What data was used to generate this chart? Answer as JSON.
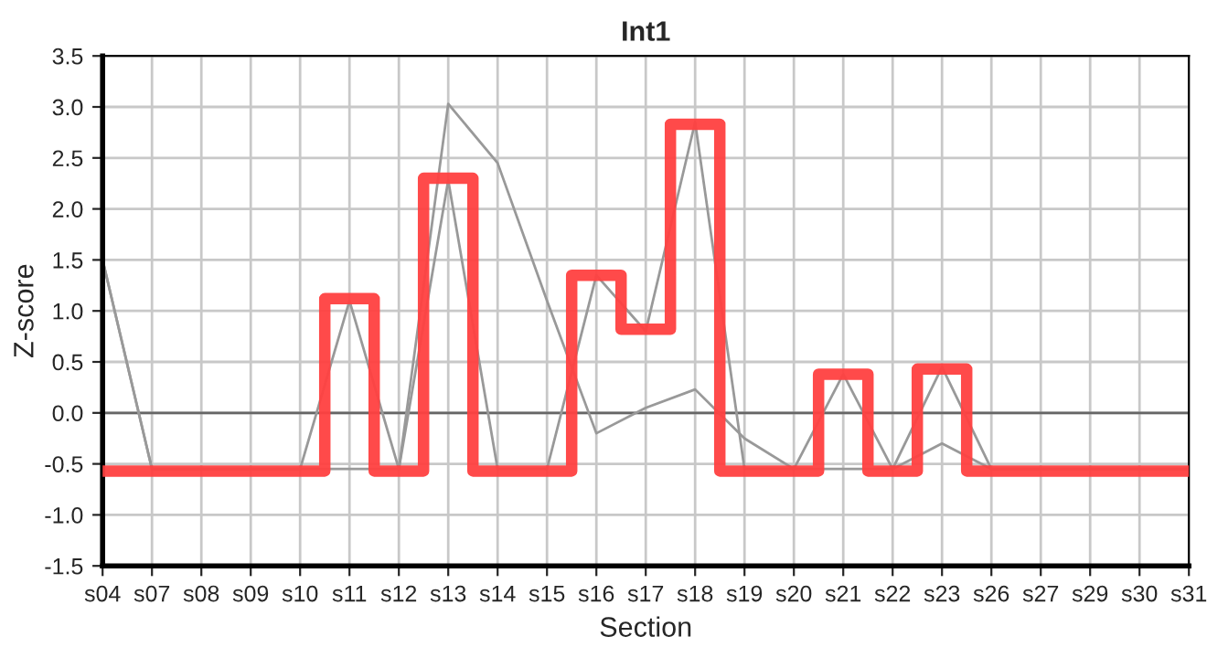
{
  "chart_data": {
    "type": "step",
    "title": "Int1",
    "xlabel": "Section",
    "ylabel": "Z-score",
    "categories": [
      "s04",
      "s07",
      "s08",
      "s09",
      "s10",
      "s11",
      "s12",
      "s13",
      "s14",
      "s15",
      "s16",
      "s17",
      "s18",
      "s19",
      "s20",
      "s21",
      "s22",
      "s23",
      "s26",
      "s27",
      "s29",
      "s30",
      "s31"
    ],
    "series": [
      {
        "type": "line",
        "color": "#999999",
        "values": [
          1.5,
          -0.55,
          -0.55,
          -0.55,
          -0.55,
          -0.55,
          -0.55,
          3.03,
          2.45,
          1.1,
          -0.2,
          0.05,
          0.23,
          -0.25,
          -0.55,
          -0.55,
          -0.55,
          -0.3,
          -0.55,
          -0.55,
          -0.55,
          -0.55,
          -0.55
        ]
      },
      {
        "type": "line",
        "color": "#999999",
        "values": [
          1.5,
          -0.55,
          -0.55,
          -0.55,
          -0.55,
          1.1,
          -0.55,
          2.28,
          -0.55,
          -0.55,
          1.35,
          0.8,
          2.85,
          -0.55,
          -0.55,
          0.38,
          -0.55,
          0.45,
          -0.55,
          -0.55,
          -0.55,
          -0.55,
          -0.55
        ]
      },
      {
        "color": "#ff4040",
        "values": [
          -0.57,
          -0.57,
          -0.57,
          -0.57,
          -0.57,
          1.12,
          -0.57,
          2.3,
          -0.57,
          -0.57,
          1.35,
          0.82,
          2.83,
          -0.57,
          -0.57,
          0.38,
          -0.57,
          0.43,
          -0.57,
          -0.57,
          -0.57,
          -0.57,
          -0.57
        ]
      }
    ],
    "ylim": [
      -1.5,
      3.5
    ],
    "yticks": [
      {
        "value": -1.5,
        "label": "-1.5"
      },
      {
        "value": -1,
        "label": "-1.0"
      },
      {
        "value": -0.5,
        "label": "-0.5"
      },
      {
        "value": 0,
        "label": "0.0"
      },
      0.5,
      {
        "value": 1,
        "label": "1.0"
      },
      1.5,
      {
        "value": 2,
        "label": "2.0"
      },
      2.5,
      {
        "value": 3,
        "label": "3.0"
      },
      3.5
    ],
    "ref_lines": [
      {
        "axis": "y",
        "value": 0,
        "color": "#666666"
      }
    ],
    "grid": true,
    "legend": false,
    "marker": "none",
    "line_style": "solid"
  }
}
